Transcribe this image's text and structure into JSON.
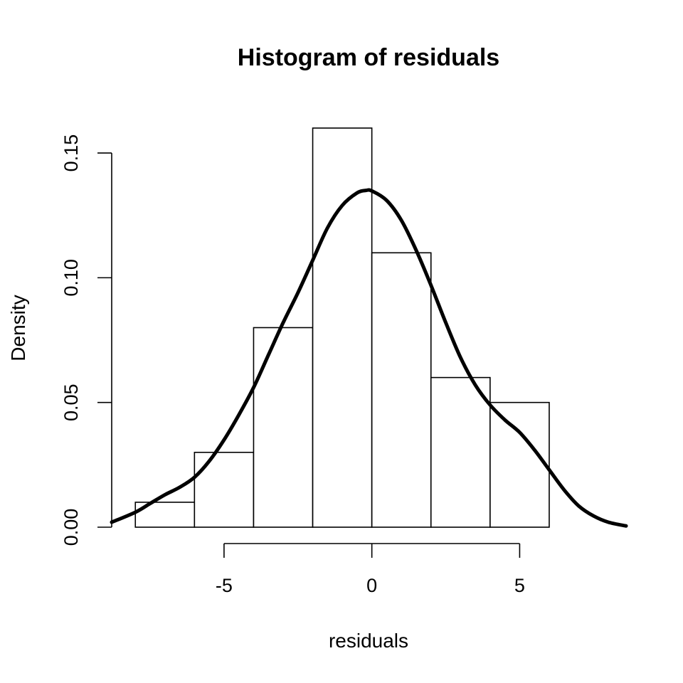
{
  "chart_data": {
    "type": "bar",
    "subtype": "histogram-with-density",
    "title": "Histogram of residuals",
    "xlabel": "residuals",
    "ylabel": "Density",
    "xlim": [
      -8.8,
      8.6
    ],
    "ylim": [
      0,
      0.16
    ],
    "bins": [
      {
        "from": -8,
        "to": -6,
        "density": 0.01
      },
      {
        "from": -6,
        "to": -4,
        "density": 0.03
      },
      {
        "from": -4,
        "to": -2,
        "density": 0.08
      },
      {
        "from": -2,
        "to": 0,
        "density": 0.16
      },
      {
        "from": 0,
        "to": 2,
        "density": 0.11
      },
      {
        "from": 2,
        "to": 4,
        "density": 0.06
      },
      {
        "from": 4,
        "to": 6,
        "density": 0.05
      }
    ],
    "x_ticks": [
      {
        "value": -5,
        "label": "-5"
      },
      {
        "value": 0,
        "label": "0"
      },
      {
        "value": 5,
        "label": "5"
      }
    ],
    "y_ticks": [
      {
        "value": 0,
        "label": "0.00"
      },
      {
        "value": 0.05,
        "label": "0.05"
      },
      {
        "value": 0.1,
        "label": "0.10"
      },
      {
        "value": 0.15,
        "label": "0.15"
      }
    ],
    "density_curve": {
      "x": [
        -8.8,
        -8.0,
        -7.5,
        -7.0,
        -6.5,
        -6.0,
        -5.5,
        -5.0,
        -4.5,
        -4.0,
        -3.5,
        -3.0,
        -2.5,
        -2.0,
        -1.5,
        -1.0,
        -0.5,
        -0.2,
        0.0,
        0.5,
        1.0,
        1.5,
        2.0,
        2.5,
        3.0,
        3.5,
        4.0,
        4.5,
        5.0,
        5.5,
        6.0,
        6.5,
        7.0,
        7.5,
        8.0,
        8.6
      ],
      "y": [
        0.002,
        0.006,
        0.0095,
        0.013,
        0.016,
        0.02,
        0.0265,
        0.035,
        0.045,
        0.056,
        0.069,
        0.082,
        0.094,
        0.107,
        0.12,
        0.129,
        0.134,
        0.135,
        0.1348,
        0.131,
        0.123,
        0.111,
        0.097,
        0.082,
        0.068,
        0.057,
        0.049,
        0.043,
        0.038,
        0.031,
        0.023,
        0.015,
        0.0085,
        0.0045,
        0.002,
        0.0005
      ]
    }
  }
}
